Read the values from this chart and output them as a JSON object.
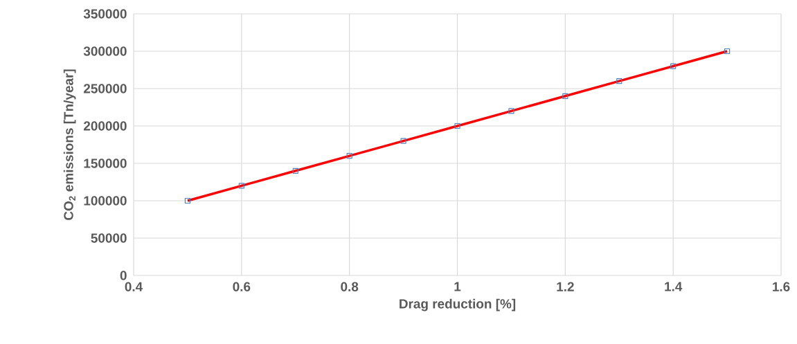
{
  "chart_data": {
    "type": "line",
    "xlabel": "Drag reduction [%]",
    "ylabel": "CO$_{2}$ emissions [Tn/year]",
    "x": [
      0.5,
      0.6,
      0.7,
      0.8,
      0.9,
      1.0,
      1.1,
      1.2,
      1.3,
      1.4,
      1.5
    ],
    "series": [
      {
        "color": "#ff0000",
        "values": [
          100000,
          120000,
          140000,
          160000,
          180000,
          200000,
          220000,
          240000,
          260000,
          280000,
          300000
        ]
      }
    ],
    "xlim": [
      0.4,
      1.6
    ],
    "xticks": [
      0.4,
      0.6,
      0.8,
      1,
      1.2,
      1.4,
      1.6
    ],
    "ylim": [
      0,
      350000
    ],
    "yticks": [
      0,
      50000,
      100000,
      150000,
      200000,
      250000,
      300000,
      350000
    ],
    "grid": true,
    "marker": "square",
    "line_style": "solid"
  }
}
